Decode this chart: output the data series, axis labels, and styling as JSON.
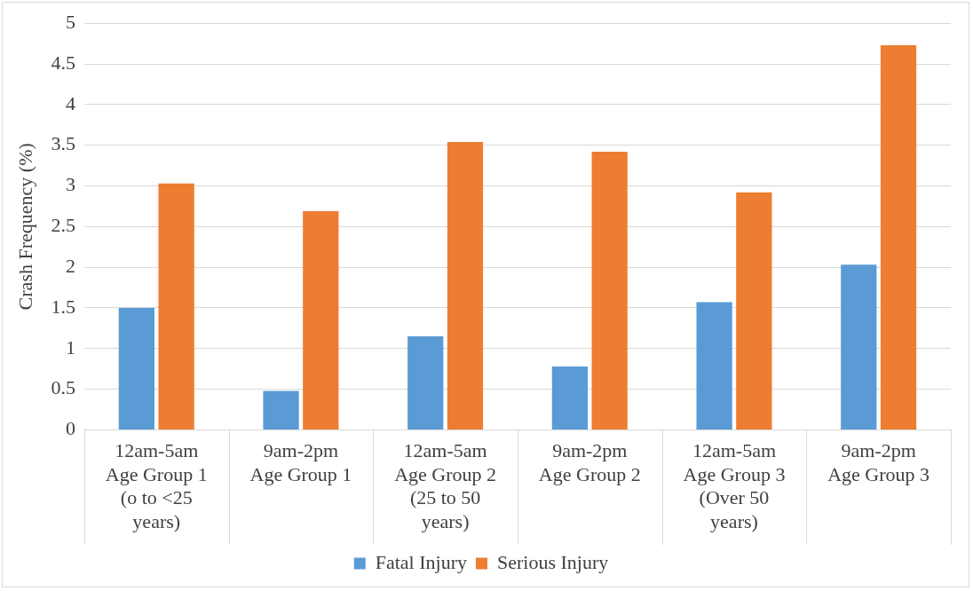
{
  "chart_data": {
    "type": "bar",
    "ylabel": "Crash Frequency (%)",
    "categories": [
      "12am-5am\nAge Group 1\n(o to <25\nyears)",
      "9am-2pm\nAge Group 1",
      "12am-5am\nAge Group 2\n(25 to 50\nyears)",
      "9am-2pm\nAge Group 2",
      "12am-5am\nAge Group 3\n(Over 50\nyears)",
      "9am-2pm\nAge Group 3"
    ],
    "series": [
      {
        "name": "Fatal Injury",
        "color": "#5b9bd5",
        "values": [
          1.5,
          0.48,
          1.15,
          0.78,
          1.57,
          2.03
        ]
      },
      {
        "name": "Serious Injury",
        "color": "#ed7d31",
        "values": [
          3.03,
          2.69,
          3.54,
          3.42,
          2.92,
          4.73
        ]
      }
    ],
    "ylim": [
      0,
      5
    ],
    "yticks": [
      0,
      0.5,
      1,
      1.5,
      2,
      2.5,
      3,
      3.5,
      4,
      4.5,
      5
    ],
    "grid": "y",
    "legend": "bottom"
  }
}
